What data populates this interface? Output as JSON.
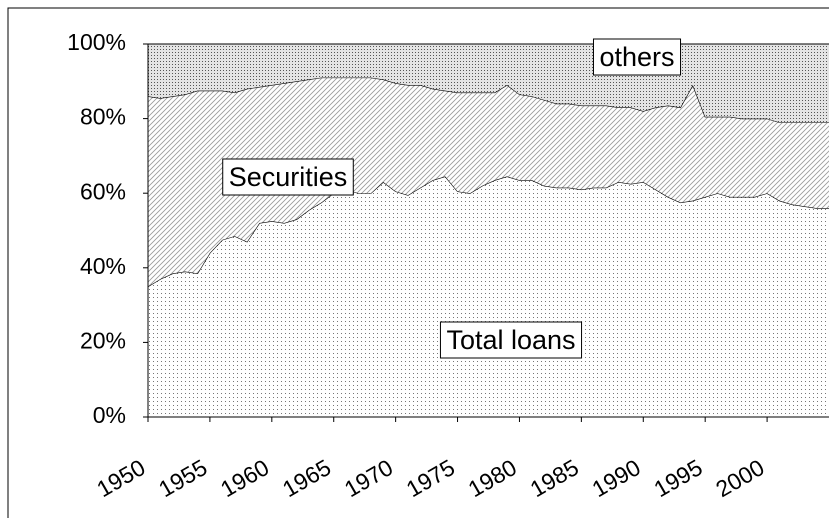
{
  "chart_data": {
    "type": "stacked_area",
    "x": [
      1950,
      1951,
      1952,
      1953,
      1954,
      1955,
      1956,
      1957,
      1958,
      1959,
      1960,
      1961,
      1962,
      1963,
      1964,
      1965,
      1966,
      1967,
      1968,
      1969,
      1970,
      1971,
      1972,
      1973,
      1974,
      1975,
      1976,
      1977,
      1978,
      1979,
      1980,
      1981,
      1982,
      1983,
      1984,
      1985,
      1986,
      1987,
      1988,
      1989,
      1990,
      1991,
      1992,
      1993,
      1994,
      1995,
      1996,
      1997,
      1998,
      1999,
      2000,
      2001,
      2002,
      2003,
      2004,
      2005
    ],
    "series": [
      {
        "name": "Total loans",
        "color": "#9a9a9a",
        "values": [
          35,
          37,
          38.5,
          39,
          38.5,
          44,
          47.5,
          48.5,
          47,
          52,
          52.5,
          52,
          53,
          55.5,
          57.5,
          60,
          61,
          60,
          60,
          63,
          60.5,
          59.5,
          61.5,
          63.5,
          64.5,
          60.5,
          60,
          62,
          63.5,
          64.5,
          63.5,
          63.5,
          62,
          61.5,
          61.5,
          61,
          61.5,
          61.5,
          63,
          62.5,
          63,
          61,
          59,
          57.5,
          58,
          59,
          60,
          59,
          59,
          59,
          60,
          58,
          57,
          56.5,
          56,
          56
        ]
      },
      {
        "name": "Securities",
        "color": "#8a8a8a",
        "values": [
          51,
          48.5,
          47.5,
          47.5,
          49,
          43.5,
          40,
          38.5,
          41,
          36.5,
          36.5,
          37.5,
          37,
          35,
          33.5,
          31,
          30,
          31,
          31,
          27.5,
          29,
          29.5,
          27.5,
          24.5,
          23,
          26.5,
          27,
          25,
          23.5,
          24.5,
          23,
          22.5,
          23,
          22.5,
          22.5,
          22.5,
          22,
          22,
          20,
          20.5,
          19,
          22,
          24.5,
          25.5,
          31,
          21.5,
          20.5,
          21.5,
          21,
          21,
          20,
          21,
          22,
          22.5,
          23,
          23
        ]
      },
      {
        "name": "others",
        "color": "#555555",
        "values": [
          14,
          14.5,
          14,
          13.5,
          12.5,
          12.5,
          12.5,
          13,
          12,
          11.5,
          11,
          10.5,
          10,
          9.5,
          9,
          9,
          9,
          9,
          9,
          9.5,
          10.5,
          11,
          11,
          12,
          12.5,
          13,
          13,
          13,
          13,
          11,
          13.5,
          14,
          15,
          16,
          16,
          16.5,
          16.5,
          16.5,
          17,
          17,
          18,
          17,
          16.5,
          17,
          11,
          19.5,
          19.5,
          19.5,
          20,
          20,
          20,
          21,
          21,
          21,
          21,
          21
        ]
      }
    ],
    "xlim": [
      1950,
      2005
    ],
    "xticks": [
      1950,
      1955,
      1960,
      1965,
      1970,
      1975,
      1980,
      1985,
      1990,
      1995,
      2000
    ],
    "ylim": [
      0,
      100
    ],
    "yticks": [
      {
        "value": 0,
        "label": "0%"
      },
      {
        "value": 20,
        "label": "20%"
      },
      {
        "value": 40,
        "label": "40%"
      },
      {
        "value": 60,
        "label": "60%"
      },
      {
        "value": 80,
        "label": "80%"
      },
      {
        "value": 100,
        "label": "100%"
      }
    ]
  }
}
